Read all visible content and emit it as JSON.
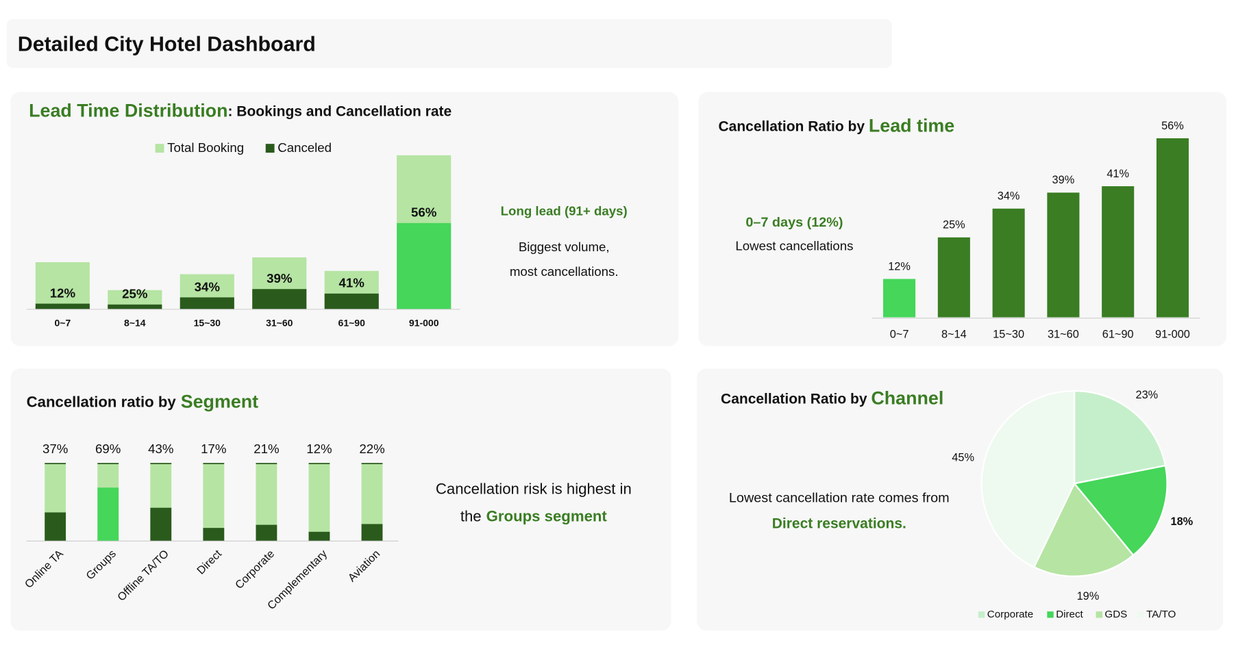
{
  "header": {
    "title": "Detailed City Hotel Dashboard"
  },
  "chart_data": [
    {
      "type": "overlap_bar",
      "title": "Lead Time Distribution",
      "subtitle": ": Bookings and Cancellation rate",
      "categories": [
        "0~7",
        "8~14",
        "15~30",
        "31~60",
        "61~90",
        "91-000"
      ],
      "ylim": [
        0,
        37000
      ],
      "series": [
        {
          "name": "Total Booking",
          "color": "#b5e4a3",
          "values": [
            10800,
            4400,
            8050,
            11900,
            8800,
            35300
          ]
        },
        {
          "name": "Canceled",
          "color": "#2a5a1c",
          "colors": [
            "#2a5a1c",
            "#2a5a1c",
            "#2a5a1c",
            "#2a5a1c",
            "#2a5a1c",
            "#45d65a"
          ],
          "values": [
            12,
            25,
            34,
            39,
            41,
            56
          ],
          "value_labels": [
            "12%",
            "25%",
            "34%",
            "39%",
            "41%",
            "56%"
          ]
        }
      ],
      "annotation": {
        "heading": "Long lead (91+ days)",
        "lines": [
          "Biggest volume,",
          "most cancellations."
        ]
      }
    },
    {
      "type": "bar",
      "title": "Cancellation Ratio by",
      "title_emphasis": "Lead time",
      "categories": [
        "0~7",
        "8~14",
        "15~30",
        "31~60",
        "61~90",
        "91-000"
      ],
      "values": [
        12,
        25,
        34,
        39,
        41,
        56
      ],
      "value_labels": [
        "12%",
        "25%",
        "34%",
        "39%",
        "41%",
        "56%"
      ],
      "colors": [
        "#45d65a",
        "#3a7d23",
        "#3a7d23",
        "#3a7d23",
        "#3a7d23",
        "#3a7d23"
      ],
      "ylim": [
        0,
        60
      ],
      "annotation": {
        "heading": "0–7 days (12%)",
        "lines": [
          "Lowest cancellations"
        ]
      }
    },
    {
      "type": "share_bar",
      "title": "Cancellation ratio by",
      "title_emphasis": "Segment",
      "categories": [
        "Online TA",
        "Groups",
        "Offline TA/TO",
        "Direct",
        "Corporate",
        "Complementary",
        "Aviation"
      ],
      "values": [
        37,
        69,
        43,
        17,
        21,
        12,
        22
      ],
      "value_labels": [
        "37%",
        "69%",
        "43%",
        "17%",
        "21%",
        "12%",
        "22%"
      ],
      "colors": [
        "#2a5a1c",
        "#45d65a",
        "#2a5a1c",
        "#2a5a1c",
        "#2a5a1c",
        "#2a5a1c",
        "#2a5a1c"
      ],
      "background_color": "#b5e4a3",
      "ylim": [
        0,
        100
      ],
      "annotation": {
        "lines": [
          "Cancellation risk is highest in",
          "the"
        ],
        "emphasis": "Groups segment"
      }
    },
    {
      "type": "pie",
      "title": "Cancellation Ratio by",
      "title_emphasis": "Channel",
      "categories": [
        "Corporate",
        "Direct",
        "GDS",
        "TA/TO"
      ],
      "values": [
        23,
        18,
        19,
        45
      ],
      "value_labels": [
        "23%",
        "18%",
        "19%",
        "45%"
      ],
      "colors": [
        "#c5efca",
        "#45d65a",
        "#b5e4a3",
        "#eef9ef"
      ],
      "annotation": {
        "lines": [
          "Lowest cancellation rate comes from"
        ],
        "emphasis": "Direct reservations."
      }
    }
  ]
}
